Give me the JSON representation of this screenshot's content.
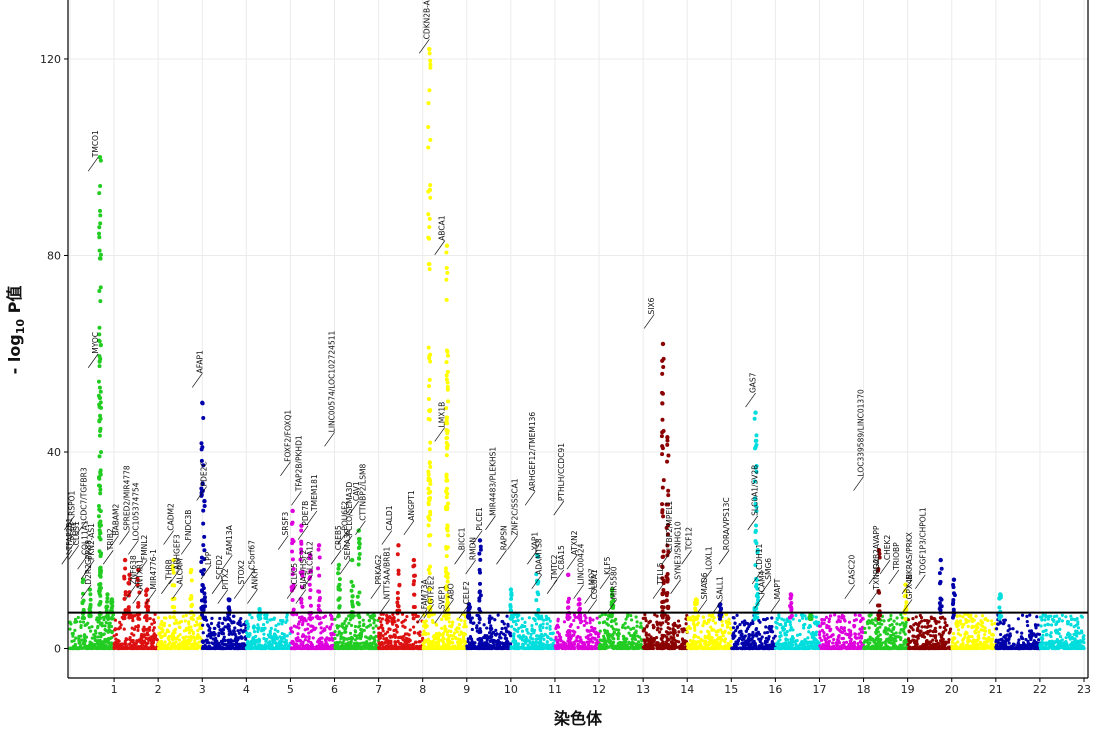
{
  "chart_data": {
    "type": "scatter",
    "subtype": "manhattan",
    "title": "",
    "xlabel": "染色体",
    "ylabel_parts": {
      "prefix": "- log",
      "subscript": "10",
      "suffix": " P值"
    },
    "ylim": [
      -6,
      132
    ],
    "y_ticks": [
      0,
      40,
      80,
      120
    ],
    "x_ticks": [
      "1",
      "2",
      "3",
      "4",
      "5",
      "6",
      "7",
      "8",
      "9",
      "10",
      "11",
      "12",
      "13",
      "14",
      "15",
      "16",
      "17",
      "18",
      "19",
      "20",
      "21",
      "22",
      "23"
    ],
    "threshold": 7.3,
    "grid": true,
    "colors": [
      "#22cc22",
      "#dd1111",
      "#ffff00",
      "#0000aa",
      "#00dddd",
      "#dd00dd",
      "#22cc22",
      "#dd1111",
      "#ffff00",
      "#0000aa",
      "#00dddd",
      "#dd00dd",
      "#22cc22",
      "#8b0000",
      "#ffff00",
      "#0000aa",
      "#00dddd",
      "#dd00dd",
      "#22cc22",
      "#8b0000",
      "#ffff00",
      "#0000aa",
      "#00dddd"
    ],
    "chromosomes": [
      {
        "chr": "1",
        "start": 0.0,
        "end": 1.0
      },
      {
        "chr": "2",
        "start": 1.0,
        "end": 2.0
      },
      {
        "chr": "3",
        "start": 2.0,
        "end": 3.0
      },
      {
        "chr": "4",
        "start": 3.0,
        "end": 4.0
      },
      {
        "chr": "5",
        "start": 4.0,
        "end": 5.0
      },
      {
        "chr": "6",
        "start": 5.0,
        "end": 6.0
      },
      {
        "chr": "7",
        "start": 6.0,
        "end": 7.0
      },
      {
        "chr": "8",
        "start": 7.0,
        "end": 8.0
      },
      {
        "chr": "9",
        "start": 8.0,
        "end": 9.0
      },
      {
        "chr": "10",
        "start": 9.0,
        "end": 10.0
      },
      {
        "chr": "11",
        "start": 10.0,
        "end": 11.0
      },
      {
        "chr": "12",
        "start": 11.0,
        "end": 12.0
      },
      {
        "chr": "13",
        "start": 12.0,
        "end": 13.0
      },
      {
        "chr": "14",
        "start": 13.0,
        "end": 14.0
      },
      {
        "chr": "15",
        "start": 14.0,
        "end": 15.0
      },
      {
        "chr": "16",
        "start": 15.0,
        "end": 16.0
      },
      {
        "chr": "17",
        "start": 16.0,
        "end": 17.0
      },
      {
        "chr": "18",
        "start": 17.0,
        "end": 18.0
      },
      {
        "chr": "19",
        "start": 18.0,
        "end": 19.0
      },
      {
        "chr": "20",
        "start": 19.0,
        "end": 20.0
      },
      {
        "chr": "21",
        "start": 20.0,
        "end": 21.0
      },
      {
        "chr": "22",
        "start": 21.0,
        "end": 22.0
      },
      {
        "chr": "23",
        "start": 22.0,
        "end": 23.0
      }
    ],
    "peaks": [
      {
        "chr": 1,
        "pos": 0.68,
        "max": 100,
        "label": "TMCO1"
      },
      {
        "chr": 1,
        "pos": 0.68,
        "max": 51,
        "label": "MYOC"
      },
      {
        "chr": 1,
        "pos": 0.3,
        "max": 14,
        "label": "RSPO1"
      },
      {
        "chr": 1,
        "pos": 0.45,
        "max": 12,
        "label": "CDC7/TGFBR3"
      },
      {
        "chr": 1,
        "pos": 0.85,
        "max": 11,
        "label": "PKN2-AS1"
      },
      {
        "chr": 1,
        "pos": 0.95,
        "max": 10,
        "label": "GPR88"
      },
      {
        "chr": 2,
        "pos": 1.25,
        "max": 18,
        "label": "BABAM2"
      },
      {
        "chr": 2,
        "pos": 1.35,
        "max": 15,
        "label": "SPRED2/MIR4778"
      },
      {
        "chr": 2,
        "pos": 1.55,
        "max": 16,
        "label": "LOC105374754"
      },
      {
        "chr": 2,
        "pos": 1.75,
        "max": 12,
        "label": "FMNL2"
      },
      {
        "chr": 3,
        "pos": 2.35,
        "max": 18,
        "label": "CADM2"
      },
      {
        "chr": 3,
        "pos": 2.75,
        "max": 16,
        "label": "FNDC3B"
      },
      {
        "chr": 4,
        "pos": 3.0,
        "max": 50,
        "label": "AFAP1"
      },
      {
        "chr": 4,
        "pos": 3.05,
        "max": 30,
        "label": "PDE2C"
      },
      {
        "chr": 4,
        "pos": 3.6,
        "max": 10,
        "label": "FAM13A"
      },
      {
        "chr": 5,
        "pos": 4.3,
        "max": 8,
        "label": "C5orf67"
      },
      {
        "chr": 6,
        "pos": 5.05,
        "max": 28,
        "label": "FOXF2/FOXQ1"
      },
      {
        "chr": 6,
        "pos": 5.25,
        "max": 25,
        "label": "TFAP2B/PKHD1"
      },
      {
        "chr": 6,
        "pos": 5.45,
        "max": 19,
        "label": "PDE7B"
      },
      {
        "chr": 6,
        "pos": 5.65,
        "max": 21,
        "label": "TMEM181"
      },
      {
        "chr": 7,
        "pos": 6.1,
        "max": 17,
        "label": "LINC00574/LOC102724511"
      },
      {
        "chr": 7,
        "pos": 6.4,
        "max": 18,
        "label": "POU6F2"
      },
      {
        "chr": 7,
        "pos": 6.55,
        "max": 24,
        "label": "CAV1"
      },
      {
        "chr": 8,
        "pos": 7.45,
        "max": 21,
        "label": "CALD1"
      },
      {
        "chr": 8,
        "pos": 7.8,
        "max": 18,
        "label": "ANGPT1"
      },
      {
        "chr": 9,
        "pos": 8.15,
        "max": 122,
        "label": "CDKN2B-AS1"
      },
      {
        "chr": 9,
        "pos": 8.55,
        "max": 82,
        "label": "ABCA1"
      },
      {
        "chr": 9,
        "pos": 8.55,
        "max": 47,
        "label": "LMX1B"
      },
      {
        "chr": 10,
        "pos": 9.05,
        "max": 9,
        "label": "BICC1"
      },
      {
        "chr": 10,
        "pos": 9.3,
        "max": 22,
        "label": "PLCE1"
      },
      {
        "chr": 11,
        "pos": 10.0,
        "max": 12,
        "label": "MIR4483/PLEKHS1"
      },
      {
        "chr": 11,
        "pos": 10.6,
        "max": 19,
        "label": "ARHGEF12/TMEM136"
      },
      {
        "chr": 12,
        "pos": 11.3,
        "max": 15,
        "label": "PTHLH/CCDC91"
      },
      {
        "chr": 12,
        "pos": 11.55,
        "max": 10,
        "label": "ATXN2"
      },
      {
        "chr": 13,
        "pos": 12.3,
        "max": 12,
        "label": "KLF5"
      },
      {
        "chr": 14,
        "pos": 13.45,
        "max": 62,
        "label": "SIX6"
      },
      {
        "chr": 14,
        "pos": 13.55,
        "max": 43,
        "label": "SIX6"
      },
      {
        "chr": 15,
        "pos": 14.2,
        "max": 10,
        "label": "TCF12"
      },
      {
        "chr": 16,
        "pos": 14.75,
        "max": 9,
        "label": "LOXL1"
      },
      {
        "chr": 17,
        "pos": 15.55,
        "max": 48,
        "label": "GAS7"
      },
      {
        "chr": 17,
        "pos": 15.6,
        "max": 20,
        "label": "SLC0A1/SV2B"
      },
      {
        "chr": 18,
        "pos": 16.35,
        "max": 11,
        "label": "SMG6"
      },
      {
        "chr": 19,
        "pos": 16.8,
        "max": 7,
        "label": "MAPT"
      },
      {
        "chr": 20,
        "pos": 18.35,
        "max": 20,
        "label": "LOC339589/LINC01370"
      },
      {
        "chr": 21,
        "pos": 18.95,
        "max": 13,
        "label": "GAB2AVAPP"
      },
      {
        "chr": 22,
        "pos": 19.75,
        "max": 18,
        "label": "CHEK2"
      },
      {
        "chr": 22,
        "pos": 20.05,
        "max": 14,
        "label": "TRIOBP"
      },
      {
        "chr": 23,
        "pos": 21.1,
        "max": 11,
        "label": "NKRAS/PRKX"
      }
    ],
    "annotations": [
      {
        "text": "TMCO1",
        "x": 0.64,
        "y": 100
      },
      {
        "text": "MYOC",
        "x": 0.64,
        "y": 60
      },
      {
        "text": "RSPO1",
        "x": 0.1,
        "y": 27
      },
      {
        "text": "TFAP2B1",
        "x": 0.04,
        "y": 20
      },
      {
        "text": "PERE",
        "x": 0.14,
        "y": 22
      },
      {
        "text": "CLUS1",
        "x": 0.2,
        "y": 21
      },
      {
        "text": "CDC7/TGFBR3",
        "x": 0.37,
        "y": 26
      },
      {
        "text": "COL11A1",
        "x": 0.4,
        "y": 19
      },
      {
        "text": "GPR88",
        "x": 0.48,
        "y": 17
      },
      {
        "text": "PKN2-AS1",
        "x": 0.55,
        "y": 18
      },
      {
        "text": "D2R2",
        "x": 0.48,
        "y": 13
      },
      {
        "text": "BABAM2",
        "x": 1.1,
        "y": 23
      },
      {
        "text": "SPRED2/MIR4778",
        "x": 1.35,
        "y": 24
      },
      {
        "text": "LOC105374754",
        "x": 1.55,
        "y": 22
      },
      {
        "text": "FMNL2",
        "x": 1.75,
        "y": 18
      },
      {
        "text": "TRIB2",
        "x": 0.98,
        "y": 20
      },
      {
        "text": "ZNF638",
        "x": 1.5,
        "y": 13
      },
      {
        "text": "ANTXR1",
        "x": 1.65,
        "y": 12
      },
      {
        "text": "MIR4776-1",
        "x": 1.95,
        "y": 12
      },
      {
        "text": "CADM2",
        "x": 2.35,
        "y": 24
      },
      {
        "text": "FNDC3B",
        "x": 2.75,
        "y": 22
      },
      {
        "text": "THRB",
        "x": 2.3,
        "y": 14
      },
      {
        "text": "ARHGEF3",
        "x": 2.48,
        "y": 16
      },
      {
        "text": "ALCAM",
        "x": 2.55,
        "y": 13
      },
      {
        "text": "AFAP1",
        "x": 3.0,
        "y": 56
      },
      {
        "text": "PDE2C",
        "x": 3.1,
        "y": 33
      },
      {
        "text": "LPP",
        "x": 3.2,
        "y": 17
      },
      {
        "text": "SCFD2",
        "x": 3.45,
        "y": 14
      },
      {
        "text": "FAM13A",
        "x": 3.68,
        "y": 19
      },
      {
        "text": "PITX2",
        "x": 3.58,
        "y": 12
      },
      {
        "text": "STOX2",
        "x": 3.95,
        "y": 13
      },
      {
        "text": "C5orf67",
        "x": 4.18,
        "y": 16
      },
      {
        "text": "ANKH",
        "x": 4.25,
        "y": 12
      },
      {
        "text": "FOXF2/FOXQ1",
        "x": 5.0,
        "y": 38
      },
      {
        "text": "SRSF3",
        "x": 4.95,
        "y": 23
      },
      {
        "text": "TFAP2B/PKHD1",
        "x": 5.25,
        "y": 32
      },
      {
        "text": "PDE7B",
        "x": 5.4,
        "y": 25
      },
      {
        "text": "TMEM181",
        "x": 5.6,
        "y": 28
      },
      {
        "text": "CLIC5",
        "x": 5.15,
        "y": 13
      },
      {
        "text": "GJA1/HSF2",
        "x": 5.35,
        "y": 12
      },
      {
        "text": "SLC2A12",
        "x": 5.5,
        "y": 15
      },
      {
        "text": "LINC00574/LOC102724511",
        "x": 6.0,
        "y": 44
      },
      {
        "text": "CREB5",
        "x": 6.15,
        "y": 20
      },
      {
        "text": "POU6F2",
        "x": 6.3,
        "y": 24
      },
      {
        "text": "SEMA3C",
        "x": 6.35,
        "y": 18
      },
      {
        "text": "CAV1",
        "x": 6.55,
        "y": 30
      },
      {
        "text": "PCLO/SEMA3D",
        "x": 6.4,
        "y": 23
      },
      {
        "text": "CTTNBP2/LSM8",
        "x": 6.7,
        "y": 26
      },
      {
        "text": "CALD1",
        "x": 7.3,
        "y": 24
      },
      {
        "text": "ANGPT1",
        "x": 7.8,
        "y": 26
      },
      {
        "text": "PRKAG2",
        "x": 7.05,
        "y": 13
      },
      {
        "text": "NTT5AA/BRB1",
        "x": 7.25,
        "y": 10
      },
      {
        "text": "CDKN2B-AS1",
        "x": 8.15,
        "y": 124
      },
      {
        "text": "ABCA1",
        "x": 8.5,
        "y": 83
      },
      {
        "text": "LMX1B",
        "x": 8.5,
        "y": 45
      },
      {
        "text": "FAM73A",
        "x": 8.1,
        "y": 8
      },
      {
        "text": "GTF2E2",
        "x": 8.25,
        "y": 9
      },
      {
        "text": "SVEP1",
        "x": 8.5,
        "y": 8
      },
      {
        "text": "ABO",
        "x": 8.7,
        "y": 10
      },
      {
        "text": "BICC1",
        "x": 8.95,
        "y": 20
      },
      {
        "text": "CELF2",
        "x": 9.05,
        "y": 9
      },
      {
        "text": "RMDN",
        "x": 9.2,
        "y": 18
      },
      {
        "text": "PLCE1",
        "x": 9.35,
        "y": 24
      },
      {
        "text": "MIR4483/PLEKHS1",
        "x": 9.65,
        "y": 27
      },
      {
        "text": "RAPSN",
        "x": 9.9,
        "y": 20
      },
      {
        "text": "ZNF2C/SSSCA1",
        "x": 10.15,
        "y": 23
      },
      {
        "text": "ARHGEF12/TMEM136",
        "x": 10.55,
        "y": 32
      },
      {
        "text": "YAP1",
        "x": 10.6,
        "y": 20
      },
      {
        "text": "ADAMTS8",
        "x": 10.7,
        "y": 15
      },
      {
        "text": "PTHLH/CCDC91",
        "x": 11.2,
        "y": 30
      },
      {
        "text": "TMTC2",
        "x": 11.05,
        "y": 14
      },
      {
        "text": "C8A15",
        "x": 11.2,
        "y": 16
      },
      {
        "text": "ATXN2",
        "x": 11.5,
        "y": 19
      },
      {
        "text": "LINC00424",
        "x": 11.65,
        "y": 13
      },
      {
        "text": "LMO7",
        "x": 11.9,
        "y": 12
      },
      {
        "text": "COL8A1",
        "x": 11.95,
        "y": 10
      },
      {
        "text": "KLF5",
        "x": 12.25,
        "y": 15
      },
      {
        "text": "MIR5580",
        "x": 12.4,
        "y": 10
      },
      {
        "text": "SIX6",
        "x": 13.25,
        "y": 68
      },
      {
        "text": "TTLL5",
        "x": 13.45,
        "y": 13
      },
      {
        "text": "LTBP2/MPEL1",
        "x": 13.65,
        "y": 20
      },
      {
        "text": "TCF12",
        "x": 14.1,
        "y": 20
      },
      {
        "text": "SYNE3/SNHG10",
        "x": 13.85,
        "y": 14
      },
      {
        "text": "LOXL1",
        "x": 14.55,
        "y": 16
      },
      {
        "text": "RORA/VPS13C",
        "x": 14.95,
        "y": 20
      },
      {
        "text": "SMAD6",
        "x": 14.45,
        "y": 10
      },
      {
        "text": "SALL1",
        "x": 14.8,
        "y": 10
      },
      {
        "text": "GAS7",
        "x": 15.55,
        "y": 52
      },
      {
        "text": "SLC0A1/SV2B",
        "x": 15.6,
        "y": 27
      },
      {
        "text": "CDH11",
        "x": 15.7,
        "y": 16
      },
      {
        "text": "SMG6",
        "x": 15.9,
        "y": 14
      },
      {
        "text": "ICAM4",
        "x": 15.75,
        "y": 11
      },
      {
        "text": "MAPT",
        "x": 16.1,
        "y": 10
      },
      {
        "text": "CASC20",
        "x": 17.8,
        "y": 13
      },
      {
        "text": "LOC339589/LINC01370",
        "x": 18.0,
        "y": 35
      },
      {
        "text": "GAB2AVAPP",
        "x": 18.35,
        "y": 16
      },
      {
        "text": "TXNRD2",
        "x": 18.35,
        "y": 12
      },
      {
        "text": "CHEK2",
        "x": 18.6,
        "y": 18
      },
      {
        "text": "TRIOBP",
        "x": 18.8,
        "y": 16
      },
      {
        "text": "GPX4B",
        "x": 19.1,
        "y": 10
      },
      {
        "text": "NKRAS/PRKX",
        "x": 19.1,
        "y": 14
      },
      {
        "text": "TOGF1P3/CHPOL1",
        "x": 19.4,
        "y": 15
      }
    ]
  }
}
